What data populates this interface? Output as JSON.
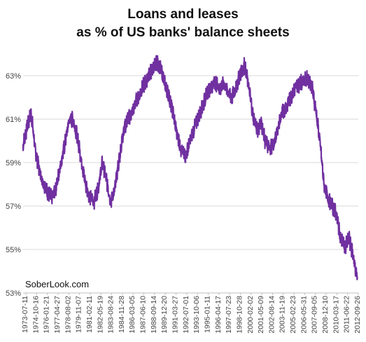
{
  "title_line1": "Loans and leases",
  "title_line2": "as % of US banks' balance sheets",
  "watermark": "SoberLook.com",
  "chart_data": {
    "type": "line",
    "title": "Loans and leases as % of US banks' balance sheets",
    "xlabel": "",
    "ylabel": "",
    "ylim": [
      53,
      64
    ],
    "y_ticks": [
      "53%",
      "55%",
      "57%",
      "59%",
      "61%",
      "63%"
    ],
    "y_tick_values": [
      53,
      55,
      57,
      59,
      61,
      63
    ],
    "x_tick_labels": [
      "1973-07-11",
      "1974-10-16",
      "1976-01-21",
      "1977-04-27",
      "1978-08-02",
      "1979-11-07",
      "1981-02-11",
      "1982-05-19",
      "1983-08-24",
      "1984-11-28",
      "1986-03-05",
      "1987-06-10",
      "1988-09-14",
      "1989-12-20",
      "1991-03-27",
      "1992-07-01",
      "1993-10-06",
      "1995-01-11",
      "1996-04-17",
      "1997-07-23",
      "1998-10-28",
      "2000-02-02",
      "2001-05-09",
      "2002-08-14",
      "2003-11-19",
      "2005-02-23",
      "2006-05-31",
      "2007-09-05",
      "2008-12-10",
      "2010-03-17",
      "2011-06-22",
      "2012-09-26"
    ],
    "grid": true,
    "line_color": "#7030A0",
    "x_years": [
      1973.5,
      1974.0,
      1974.5,
      1975.0,
      1975.5,
      1976.0,
      1976.5,
      1977.0,
      1977.5,
      1978.0,
      1978.5,
      1979.0,
      1979.5,
      1980.0,
      1980.5,
      1981.0,
      1981.5,
      1982.0,
      1982.5,
      1983.0,
      1983.5,
      1984.0,
      1984.5,
      1985.0,
      1985.5,
      1986.0,
      1986.5,
      1987.0,
      1987.5,
      1988.0,
      1988.5,
      1989.0,
      1989.5,
      1990.0,
      1990.5,
      1991.0,
      1991.5,
      1992.0,
      1992.5,
      1993.0,
      1993.5,
      1994.0,
      1994.5,
      1995.0,
      1995.5,
      1996.0,
      1996.5,
      1997.0,
      1997.5,
      1998.0,
      1998.5,
      1999.0,
      1999.5,
      2000.0,
      2000.5,
      2001.0,
      2001.5,
      2002.0,
      2002.5,
      2003.0,
      2003.5,
      2004.0,
      2004.5,
      2005.0,
      2005.5,
      2006.0,
      2006.5,
      2007.0,
      2007.5,
      2008.0,
      2008.5,
      2009.0,
      2009.5,
      2010.0,
      2010.5,
      2011.0,
      2011.5,
      2012.0,
      2012.5,
      2013.0,
      2013.3,
      2013.5
    ],
    "values": [
      59.8,
      60.6,
      61.3,
      59.5,
      58.6,
      58.0,
      57.6,
      57.4,
      57.9,
      58.9,
      59.8,
      60.9,
      61.0,
      60.2,
      59.1,
      58.0,
      57.4,
      57.2,
      57.8,
      59.0,
      58.2,
      57.2,
      57.8,
      59.1,
      60.4,
      61.0,
      61.2,
      61.8,
      62.2,
      62.6,
      63.0,
      63.3,
      63.6,
      63.3,
      62.6,
      62.0,
      61.2,
      60.2,
      59.5,
      59.3,
      60.0,
      60.6,
      61.1,
      61.6,
      62.2,
      62.5,
      62.7,
      62.4,
      62.6,
      62.3,
      62.0,
      62.5,
      63.1,
      63.5,
      62.5,
      61.2,
      60.5,
      60.8,
      59.9,
      59.7,
      59.8,
      60.6,
      61.3,
      61.6,
      62.0,
      62.4,
      62.6,
      62.8,
      62.9,
      62.6,
      61.5,
      60.0,
      58.0,
      57.3,
      57.0,
      56.6,
      55.5,
      55.1,
      55.5,
      54.7,
      54.0,
      53.7
    ]
  }
}
